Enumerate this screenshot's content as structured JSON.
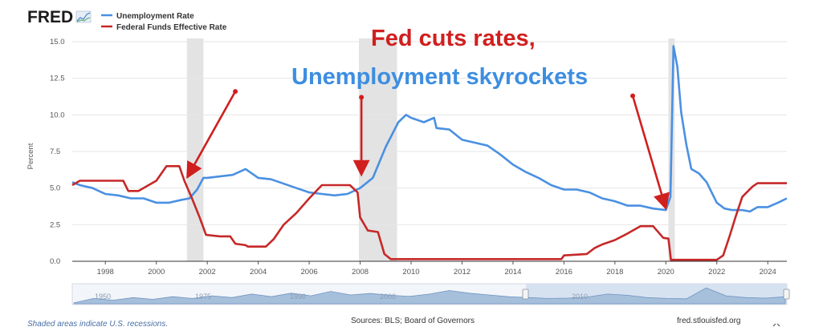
{
  "brand": {
    "logo": "FRED"
  },
  "chart_data": {
    "type": "line",
    "title": "",
    "xlabel": "",
    "ylabel": "Percent",
    "xlim": [
      1996.7,
      2024.75
    ],
    "ylim": [
      0,
      15
    ],
    "yticks": [
      "0.0",
      "2.5",
      "5.0",
      "7.5",
      "10.0",
      "12.5",
      "15.0"
    ],
    "xticks": [
      "1998",
      "2000",
      "2002",
      "2004",
      "2006",
      "2008",
      "2010",
      "2012",
      "2014",
      "2016",
      "2018",
      "2020",
      "2022",
      "2024"
    ],
    "grid": true,
    "legend_position": "top-left",
    "recessions": [
      [
        2001.2,
        2001.85
      ],
      [
        2007.95,
        2009.45
      ],
      [
        2020.1,
        2020.35
      ]
    ],
    "series": [
      {
        "name": "Unemployment Rate",
        "color": "#4a90e2",
        "points": [
          [
            1996.7,
            5.4
          ],
          [
            1997,
            5.2
          ],
          [
            1997.5,
            5.0
          ],
          [
            1998,
            4.6
          ],
          [
            1998.5,
            4.5
          ],
          [
            1999,
            4.3
          ],
          [
            1999.5,
            4.3
          ],
          [
            2000,
            4.0
          ],
          [
            2000.5,
            4.0
          ],
          [
            2001,
            4.2
          ],
          [
            2001.3,
            4.3
          ],
          [
            2001.6,
            4.9
          ],
          [
            2001.85,
            5.7
          ],
          [
            2002,
            5.7
          ],
          [
            2002.5,
            5.8
          ],
          [
            2003,
            5.9
          ],
          [
            2003.5,
            6.3
          ],
          [
            2004,
            5.7
          ],
          [
            2004.5,
            5.6
          ],
          [
            2005,
            5.3
          ],
          [
            2005.5,
            5.0
          ],
          [
            2006,
            4.7
          ],
          [
            2006.5,
            4.6
          ],
          [
            2007,
            4.5
          ],
          [
            2007.5,
            4.6
          ],
          [
            2008,
            5.0
          ],
          [
            2008.5,
            5.7
          ],
          [
            2009,
            7.8
          ],
          [
            2009.5,
            9.5
          ],
          [
            2009.8,
            10.0
          ],
          [
            2010,
            9.8
          ],
          [
            2010.5,
            9.5
          ],
          [
            2010.9,
            9.8
          ],
          [
            2011,
            9.1
          ],
          [
            2011.5,
            9.0
          ],
          [
            2012,
            8.3
          ],
          [
            2012.5,
            8.1
          ],
          [
            2013,
            7.9
          ],
          [
            2013.5,
            7.3
          ],
          [
            2014,
            6.6
          ],
          [
            2014.5,
            6.1
          ],
          [
            2015,
            5.7
          ],
          [
            2015.5,
            5.2
          ],
          [
            2016,
            4.9
          ],
          [
            2016.5,
            4.9
          ],
          [
            2017,
            4.7
          ],
          [
            2017.5,
            4.3
          ],
          [
            2018,
            4.1
          ],
          [
            2018.5,
            3.8
          ],
          [
            2019,
            3.8
          ],
          [
            2019.5,
            3.6
          ],
          [
            2020.0,
            3.5
          ],
          [
            2020.18,
            4.4
          ],
          [
            2020.3,
            14.7
          ],
          [
            2020.45,
            13.3
          ],
          [
            2020.6,
            10.2
          ],
          [
            2020.8,
            8.0
          ],
          [
            2021,
            6.3
          ],
          [
            2021.3,
            6.0
          ],
          [
            2021.6,
            5.4
          ],
          [
            2022,
            4.0
          ],
          [
            2022.3,
            3.6
          ],
          [
            2022.6,
            3.5
          ],
          [
            2023,
            3.5
          ],
          [
            2023.3,
            3.4
          ],
          [
            2023.6,
            3.7
          ],
          [
            2024,
            3.7
          ],
          [
            2024.4,
            4.0
          ],
          [
            2024.75,
            4.3
          ]
        ]
      },
      {
        "name": "Federal Funds Effective Rate",
        "color": "#c62828",
        "points": [
          [
            1996.7,
            5.2
          ],
          [
            1997,
            5.5
          ],
          [
            1998,
            5.5
          ],
          [
            1998.7,
            5.5
          ],
          [
            1998.9,
            4.8
          ],
          [
            1999.3,
            4.8
          ],
          [
            1999.6,
            5.1
          ],
          [
            2000,
            5.5
          ],
          [
            2000.4,
            6.5
          ],
          [
            2000.9,
            6.5
          ],
          [
            2001.1,
            5.5
          ],
          [
            2001.4,
            4.3
          ],
          [
            2001.7,
            3.0
          ],
          [
            2001.95,
            1.8
          ],
          [
            2002.5,
            1.7
          ],
          [
            2002.9,
            1.7
          ],
          [
            2003.1,
            1.2
          ],
          [
            2003.5,
            1.1
          ],
          [
            2003.6,
            1.0
          ],
          [
            2004.3,
            1.0
          ],
          [
            2004.6,
            1.5
          ],
          [
            2005,
            2.5
          ],
          [
            2005.5,
            3.3
          ],
          [
            2006,
            4.3
          ],
          [
            2006.5,
            5.2
          ],
          [
            2007.6,
            5.2
          ],
          [
            2007.9,
            4.7
          ],
          [
            2008.0,
            3.0
          ],
          [
            2008.3,
            2.1
          ],
          [
            2008.7,
            2.0
          ],
          [
            2008.95,
            0.5
          ],
          [
            2009.2,
            0.15
          ],
          [
            2015.9,
            0.15
          ],
          [
            2016,
            0.4
          ],
          [
            2016.9,
            0.5
          ],
          [
            2017.2,
            0.9
          ],
          [
            2017.5,
            1.15
          ],
          [
            2018,
            1.45
          ],
          [
            2018.5,
            1.9
          ],
          [
            2019,
            2.4
          ],
          [
            2019.5,
            2.4
          ],
          [
            2019.9,
            1.6
          ],
          [
            2020.1,
            1.55
          ],
          [
            2020.2,
            0.1
          ],
          [
            2022.0,
            0.1
          ],
          [
            2022.25,
            0.4
          ],
          [
            2022.5,
            1.7
          ],
          [
            2022.75,
            3.1
          ],
          [
            2023,
            4.4
          ],
          [
            2023.4,
            5.1
          ],
          [
            2023.6,
            5.33
          ],
          [
            2024.75,
            5.33
          ]
        ]
      }
    ]
  },
  "annotations": {
    "line1": "Fed cuts rates,",
    "line2": "Unemployment skyrockets",
    "arrows": [
      {
        "from": [
          2003.1,
          11.6
        ],
        "to": [
          2001.3,
          6.0
        ]
      },
      {
        "from": [
          2008.05,
          11.2
        ],
        "to": [
          2008.05,
          6.2
        ]
      },
      {
        "from": [
          2018.7,
          11.3
        ],
        "to": [
          2019.95,
          3.9
        ]
      }
    ]
  },
  "navigator": {
    "ticks": [
      "1950",
      "1975",
      "1990",
      "2000",
      "2010"
    ]
  },
  "footer": {
    "note": "Shaded areas indicate U.S. recessions.",
    "sources": "Sources: BLS; Board of Governors",
    "site": "fred.stlouisfed.org"
  }
}
